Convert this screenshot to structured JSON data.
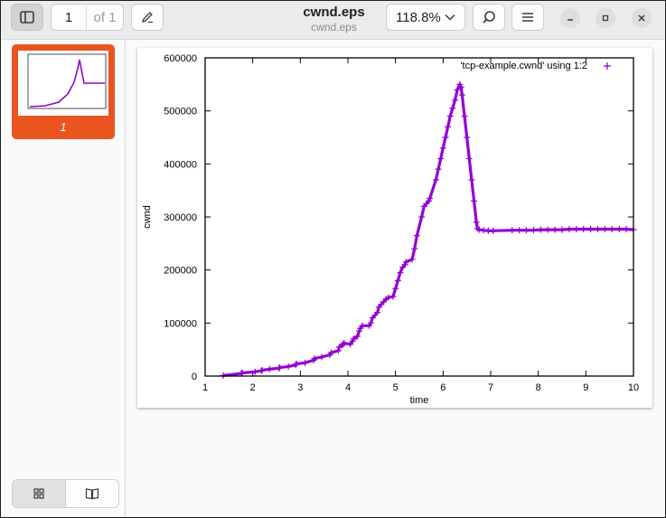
{
  "document": {
    "title": "cwnd.eps",
    "subtitle": "cwnd.eps"
  },
  "toolbar": {
    "current_page": "1",
    "page_count_label": "of 1",
    "zoom_label": "118.8%"
  },
  "icons": {
    "sidebar_toggle": "sidebar-icon",
    "annotate": "pencil-icon",
    "zoom_dropdown": "chevron-down-icon",
    "search": "search-icon",
    "menu": "hamburger-menu-icon",
    "minimize": "minimize-icon",
    "maximize": "maximize-icon",
    "close": "close-icon",
    "thumbnails_view": "grid-icon",
    "outline_view": "book-icon"
  },
  "sidebar": {
    "thumbnail_label": "1"
  },
  "colors": {
    "accent": "#e95420",
    "series": "#9400d3"
  },
  "chart_data": {
    "type": "scatter",
    "title": "",
    "xlabel": "time",
    "ylabel": "cwnd",
    "xlim": [
      1,
      10
    ],
    "ylim": [
      0,
      600000
    ],
    "xticks": [
      1,
      2,
      3,
      4,
      5,
      6,
      7,
      8,
      9,
      10
    ],
    "yticks": [
      0,
      100000,
      200000,
      300000,
      400000,
      500000,
      600000
    ],
    "legend": {
      "position": "top-right",
      "marker": "+"
    },
    "grid": false,
    "series": [
      {
        "name": "'tcp-example.cwnd' using 1:2",
        "marker": "+",
        "x": [
          1.38,
          1.76,
          1.78,
          2.05,
          2.18,
          2.2,
          2.35,
          2.55,
          2.57,
          2.75,
          2.9,
          2.92,
          3.1,
          3.28,
          3.3,
          3.45,
          3.62,
          3.65,
          3.8,
          3.82,
          3.88,
          3.9,
          3.92,
          4.05,
          4.1,
          4.12,
          4.2,
          4.24,
          4.26,
          4.3,
          4.45,
          4.48,
          4.52,
          4.62,
          4.65,
          4.7,
          4.75,
          4.8,
          4.85,
          4.95,
          5.0,
          5.05,
          5.1,
          5.15,
          5.2,
          5.22,
          5.35,
          5.4,
          5.45,
          5.55,
          5.6,
          5.65,
          5.7,
          5.72,
          5.85,
          5.9,
          5.95,
          6.0,
          6.05,
          6.1,
          6.15,
          6.2,
          6.25,
          6.3,
          6.35,
          6.38,
          6.4,
          6.45,
          6.5,
          6.55,
          6.6,
          6.65,
          6.7,
          6.72,
          6.76,
          6.85,
          6.95,
          7.05,
          7.45,
          7.6,
          7.75,
          7.9,
          8.05,
          8.2,
          8.35,
          8.5,
          8.65,
          8.8,
          8.95,
          9.1,
          9.25,
          9.4,
          9.55,
          9.7,
          9.85,
          10.0
        ],
        "y": [
          1000,
          5000,
          6000,
          8000,
          10000,
          11000,
          13000,
          15000,
          16000,
          18000,
          21000,
          23000,
          25000,
          30000,
          33000,
          36000,
          40000,
          44000,
          48000,
          55000,
          58000,
          60000,
          62000,
          60000,
          66000,
          70000,
          75000,
          85000,
          90000,
          95000,
          95000,
          100000,
          110000,
          120000,
          130000,
          135000,
          140000,
          145000,
          148000,
          150000,
          165000,
          180000,
          195000,
          205000,
          210000,
          215000,
          220000,
          240000,
          265000,
          300000,
          320000,
          325000,
          330000,
          335000,
          370000,
          390000,
          410000,
          430000,
          450000,
          470000,
          490000,
          505000,
          520000,
          540000,
          550000,
          545000,
          530000,
          490000,
          450000,
          410000,
          370000,
          330000,
          290000,
          278000,
          276000,
          275000,
          274000,
          274000,
          275000,
          275000,
          275000,
          275000,
          276000,
          276000,
          276000,
          276000,
          277000,
          277000,
          277000,
          277000,
          277000,
          277000,
          277000,
          277000,
          277000,
          276000
        ]
      }
    ]
  }
}
